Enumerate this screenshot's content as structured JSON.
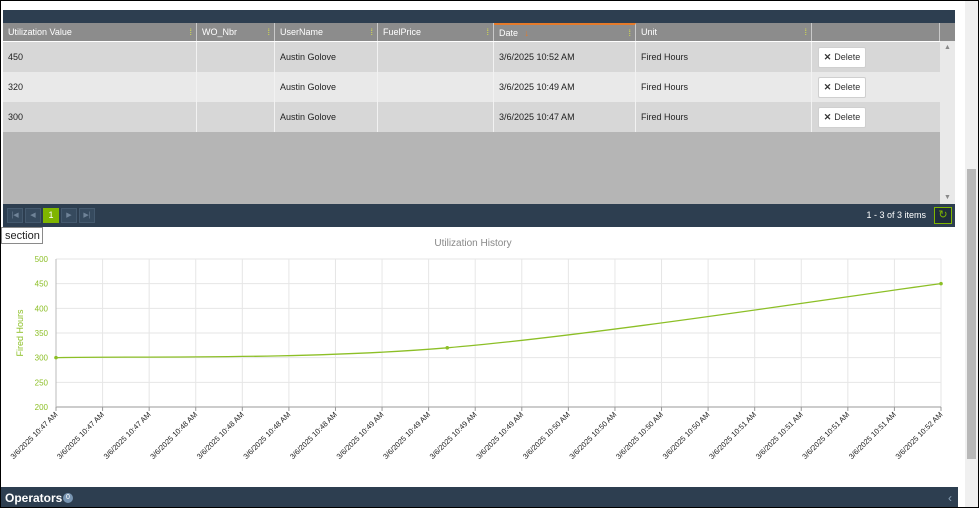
{
  "grid": {
    "columns": [
      {
        "label": "Utilization Value",
        "filter_icon": "filter-icon"
      },
      {
        "label": "WO_Nbr",
        "filter_icon": "filter-icon"
      },
      {
        "label": "UserName",
        "filter_icon": "filter-icon"
      },
      {
        "label": "FuelPrice",
        "filter_icon": "filter-icon"
      },
      {
        "label": "Date",
        "filter_icon": "filter-icon",
        "sort": "descending"
      },
      {
        "label": "Unit",
        "filter_icon": "filter-icon"
      },
      {
        "label": ""
      }
    ],
    "rows": [
      {
        "value": "450",
        "wo": "",
        "user": "Austin Golove",
        "fuel": "",
        "date": "3/6/2025 10:52 AM",
        "unit": "Fired Hours",
        "action": "Delete"
      },
      {
        "value": "320",
        "wo": "",
        "user": "Austin Golove",
        "fuel": "",
        "date": "3/6/2025 10:49 AM",
        "unit": "Fired Hours",
        "action": "Delete"
      },
      {
        "value": "300",
        "wo": "",
        "user": "Austin Golove",
        "fuel": "",
        "date": "3/6/2025 10:47 AM",
        "unit": "Fired Hours",
        "action": "Delete"
      }
    ],
    "pager": {
      "current_page": "1",
      "info": "1 - 3 of 3 items"
    }
  },
  "tooltip": {
    "text": "section"
  },
  "chart_data": {
    "type": "line",
    "title": "Utilization History",
    "ylabel": "Fired Hours",
    "xlabel": "",
    "ylim": [
      200,
      500
    ],
    "yticks": [
      200,
      250,
      300,
      350,
      400,
      450,
      500
    ],
    "x_tick_labels": [
      "3/6/2025 10:47 AM",
      "3/6/2025 10:47 AM",
      "3/6/2025 10:47 AM",
      "3/6/2025 10:48 AM",
      "3/6/2025 10:48 AM",
      "3/6/2025 10:48 AM",
      "3/6/2025 10:48 AM",
      "3/6/2025 10:49 AM",
      "3/6/2025 10:49 AM",
      "3/6/2025 10:49 AM",
      "3/6/2025 10:49 AM",
      "3/6/2025 10:50 AM",
      "3/6/2025 10:50 AM",
      "3/6/2025 10:50 AM",
      "3/6/2025 10:50 AM",
      "3/6/2025 10:51 AM",
      "3/6/2025 10:51 AM",
      "3/6/2025 10:51 AM",
      "3/6/2025 10:51 AM",
      "3/6/2025 10:52 AM"
    ],
    "series": [
      {
        "points": [
          {
            "x": "3/6/2025 10:47 AM",
            "y": 300
          },
          {
            "x": "3/6/2025 10:49 AM",
            "y": 320
          },
          {
            "x": "3/6/2025 10:52 AM",
            "y": 450
          }
        ]
      }
    ],
    "point_tick_index": [
      0,
      8.4,
      19
    ],
    "color": "#8cbf26",
    "grid": true
  },
  "operators": {
    "title": "Operators",
    "count": "0"
  }
}
